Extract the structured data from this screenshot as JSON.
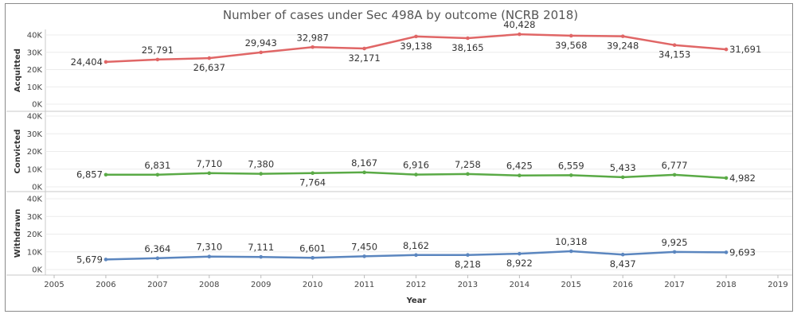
{
  "chart_data": {
    "type": "line",
    "title": "Number of cases under Sec 498A by outcome (NCRB 2018)",
    "xlabel": "Year",
    "x": [
      2006,
      2007,
      2008,
      2009,
      2010,
      2011,
      2012,
      2013,
      2014,
      2015,
      2016,
      2017,
      2018
    ],
    "x_ticks": [
      2005,
      2006,
      2007,
      2008,
      2009,
      2010,
      2011,
      2012,
      2013,
      2014,
      2015,
      2016,
      2017,
      2018,
      2019
    ],
    "xlim": [
      2005,
      2019
    ],
    "y_ticks": [
      "0K",
      "10K",
      "20K",
      "30K",
      "40K"
    ],
    "ylim": [
      0,
      40000
    ],
    "grid": true,
    "series": [
      {
        "name": "Acquitted",
        "color": "#e06666",
        "values": [
          24404,
          25791,
          26637,
          29943,
          32987,
          32171,
          39138,
          38165,
          40428,
          39568,
          39248,
          34153,
          31691
        ],
        "labels": [
          "24,404",
          "25,791",
          "26,637",
          "29,943",
          "32,987",
          "32,171",
          "39,138",
          "38,165",
          "40,428",
          "39,568",
          "39,248",
          "34,153",
          "31,691"
        ]
      },
      {
        "name": "Convicted",
        "color": "#5aaa46",
        "values": [
          6857,
          6831,
          7710,
          7380,
          7764,
          8167,
          6916,
          7258,
          6425,
          6559,
          5433,
          6777,
          4982
        ],
        "labels": [
          "6,857",
          "6,831",
          "7,710",
          "7,380",
          "7,764",
          "8,167",
          "6,916",
          "7,258",
          "6,425",
          "6,559",
          "5,433",
          "6,777",
          "4,982"
        ]
      },
      {
        "name": "Withdrawn",
        "color": "#5b86bf",
        "values": [
          5679,
          6364,
          7310,
          7111,
          6601,
          7450,
          8162,
          8218,
          8922,
          10318,
          8437,
          9925,
          9693
        ],
        "labels": [
          "5,679",
          "6,364",
          "7,310",
          "7,111",
          "6,601",
          "7,450",
          "8,162",
          "8,218",
          "8,922",
          "10,318",
          "8,437",
          "9,925",
          "9,693"
        ]
      }
    ]
  }
}
